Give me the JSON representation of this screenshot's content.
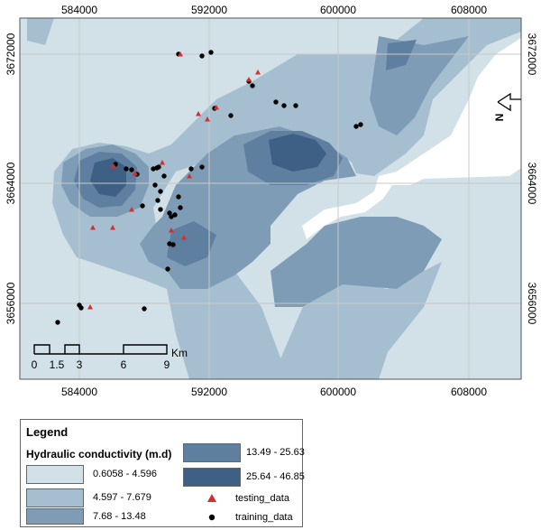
{
  "axes": {
    "x_ticks": [
      "584000",
      "592000",
      "600000",
      "608000"
    ],
    "y_ticks": [
      "3672000",
      "3664000",
      "3656000"
    ]
  },
  "scale_bar": {
    "labels": [
      "0",
      "1.5",
      "3",
      "6",
      "9"
    ],
    "unit": "Km"
  },
  "north_arrow": {
    "label": "N"
  },
  "legend": {
    "title": "Legend",
    "subtitle": "Hydraulic conductivity (m.d)",
    "classes": [
      {
        "label": "0.6058 - 4.596",
        "color": "#d2e1e8"
      },
      {
        "label": "4.597 - 7.679",
        "color": "#a6bfd0"
      },
      {
        "label": "7.68 - 13.48",
        "color": "#7e9cb6"
      },
      {
        "label": "13.49 - 25.63",
        "color": "#5e7fa0"
      },
      {
        "label": "25.64 - 46.85",
        "color": "#3f6085"
      }
    ],
    "points": [
      {
        "label": "testing_data",
        "color": "#d32f2f"
      },
      {
        "label": "training_data",
        "color": "#000000"
      }
    ]
  }
}
